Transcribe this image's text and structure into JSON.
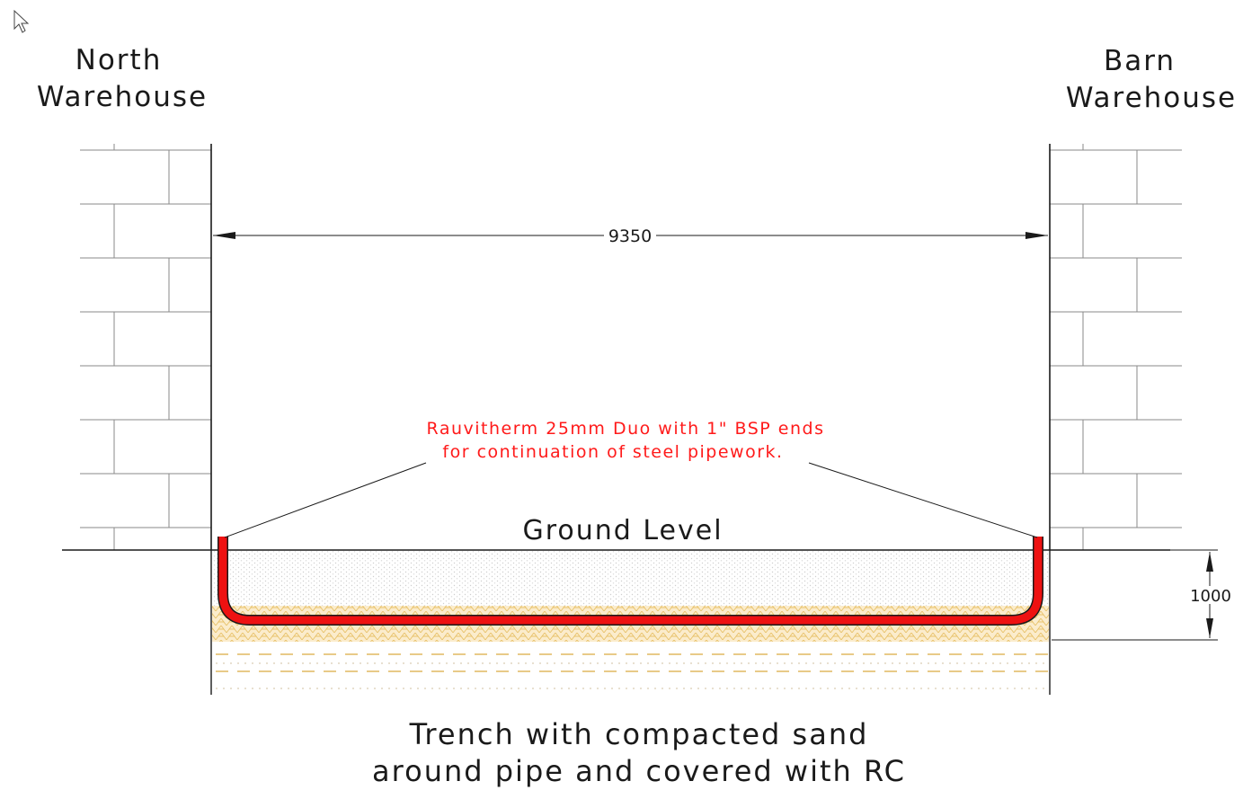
{
  "labels": {
    "left_building": [
      "North",
      "Warehouse"
    ],
    "right_building": [
      "Barn",
      "Warehouse"
    ],
    "ground_level": "Ground Level",
    "pipe_note": [
      "Rauvitherm 25mm Duo with 1\" BSP ends",
      "for continuation of steel pipework."
    ],
    "trench_note": [
      "Trench with compacted sand",
      "around pipe and covered with RC"
    ]
  },
  "dimensions": {
    "width": "9350",
    "depth": "1000"
  },
  "colors": {
    "pipe": "#ee1111",
    "note": "#ff1a1a",
    "sand": "#f5d9a0",
    "brick_line": "#8a8a8a",
    "line": "#1a1a1a"
  },
  "icons": {
    "cursor": "mouse-pointer-icon"
  }
}
